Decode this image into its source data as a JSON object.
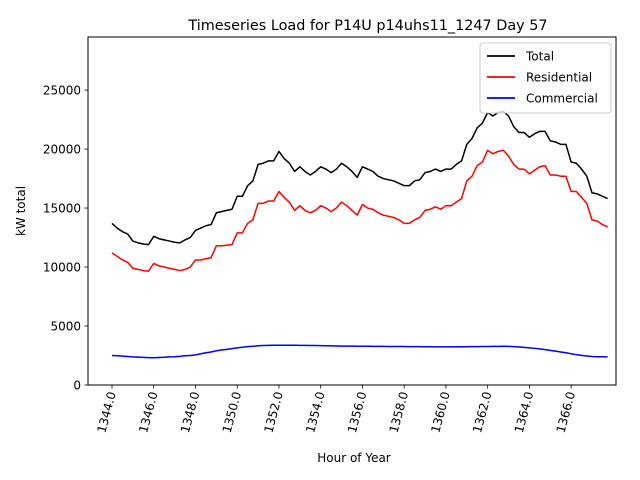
{
  "chart_data": {
    "type": "line",
    "title": "Timeseries Load for P14U p14uhs11_1247  Day 57",
    "xlabel": "Hour of Year",
    "ylabel": "kW total",
    "xlim": [
      1342.85,
      1368.15
    ],
    "ylim": [
      0,
      29500
    ],
    "x_ticks": [
      "1344.0",
      "1346.0",
      "1348.0",
      "1350.0",
      "1352.0",
      "1354.0",
      "1356.0",
      "1358.0",
      "1360.0",
      "1362.0",
      "1364.0",
      "1366.0"
    ],
    "x_tick_values": [
      1344,
      1346,
      1348,
      1350,
      1352,
      1354,
      1356,
      1358,
      1360,
      1362,
      1364,
      1366
    ],
    "y_ticks": [
      "0",
      "5000",
      "10000",
      "15000",
      "20000",
      "25000"
    ],
    "y_tick_values": [
      0,
      5000,
      10000,
      15000,
      20000,
      25000
    ],
    "legend": {
      "location": "top-right"
    },
    "x_start": 1344.0,
    "x_step": 0.25,
    "series": [
      {
        "name": "Total",
        "color": "#000000",
        "values": [
          13700,
          13300,
          13000,
          12800,
          12200,
          12050,
          11950,
          11900,
          12600,
          12400,
          12300,
          12200,
          12100,
          12050,
          12300,
          12500,
          13100,
          13300,
          13500,
          13600,
          14600,
          14700,
          14800,
          14900,
          16000,
          16000,
          16900,
          17300,
          18700,
          18800,
          19000,
          19000,
          19800,
          19200,
          18800,
          18100,
          18500,
          18100,
          17800,
          18100,
          18500,
          18300,
          18000,
          18300,
          18800,
          18500,
          18100,
          17600,
          18500,
          18300,
          18100,
          17700,
          17500,
          17400,
          17300,
          17100,
          16900,
          16900,
          17300,
          17400,
          18000,
          18100,
          18300,
          18100,
          18300,
          18300,
          18700,
          19000,
          20400,
          20900,
          21800,
          22200,
          23100,
          22800,
          23100,
          23200,
          22800,
          21900,
          21400,
          21400,
          21000,
          21300,
          21500,
          21500,
          20700,
          20600,
          20400,
          20400,
          18900,
          18800,
          18300,
          17700,
          16300,
          16200,
          16000,
          15800
        ]
      },
      {
        "name": "Residential",
        "color": "#ff0000",
        "values": [
          11200,
          10900,
          10600,
          10400,
          9900,
          9800,
          9700,
          9650,
          10300,
          10100,
          10000,
          9900,
          9800,
          9700,
          9800,
          10000,
          10600,
          10600,
          10700,
          10800,
          11800,
          11800,
          11850,
          11900,
          12900,
          12900,
          13700,
          14000,
          15400,
          15400,
          15600,
          15600,
          16400,
          15900,
          15500,
          14800,
          15200,
          14800,
          14600,
          14800,
          15200,
          15000,
          14700,
          15000,
          15500,
          15200,
          14800,
          14400,
          15300,
          15000,
          14900,
          14600,
          14400,
          14300,
          14200,
          14000,
          13700,
          13700,
          14000,
          14200,
          14800,
          14900,
          15100,
          14900,
          15200,
          15200,
          15500,
          15800,
          17300,
          17700,
          18600,
          18900,
          19900,
          19600,
          19800,
          19900,
          19400,
          18700,
          18300,
          18300,
          17900,
          18200,
          18500,
          18600,
          17800,
          17800,
          17700,
          17700,
          16400,
          16400,
          15900,
          15400,
          14000,
          13900,
          13600,
          13400
        ]
      },
      {
        "name": "Commercial",
        "color": "#0000ff",
        "values": [
          2500,
          2480,
          2450,
          2420,
          2380,
          2360,
          2340,
          2320,
          2310,
          2330,
          2350,
          2380,
          2400,
          2430,
          2480,
          2500,
          2550,
          2650,
          2730,
          2800,
          2900,
          2970,
          3020,
          3080,
          3150,
          3200,
          3250,
          3280,
          3330,
          3350,
          3360,
          3370,
          3370,
          3370,
          3370,
          3365,
          3360,
          3355,
          3350,
          3345,
          3340,
          3330,
          3320,
          3310,
          3300,
          3300,
          3295,
          3290,
          3285,
          3280,
          3275,
          3270,
          3270,
          3265,
          3265,
          3260,
          3260,
          3255,
          3255,
          3250,
          3245,
          3240,
          3235,
          3230,
          3230,
          3230,
          3235,
          3240,
          3245,
          3250,
          3255,
          3260,
          3265,
          3270,
          3275,
          3280,
          3270,
          3250,
          3220,
          3190,
          3150,
          3110,
          3060,
          3000,
          2940,
          2870,
          2800,
          2730,
          2650,
          2570,
          2510,
          2460,
          2420,
          2400,
          2390,
          2380
        ]
      }
    ]
  }
}
